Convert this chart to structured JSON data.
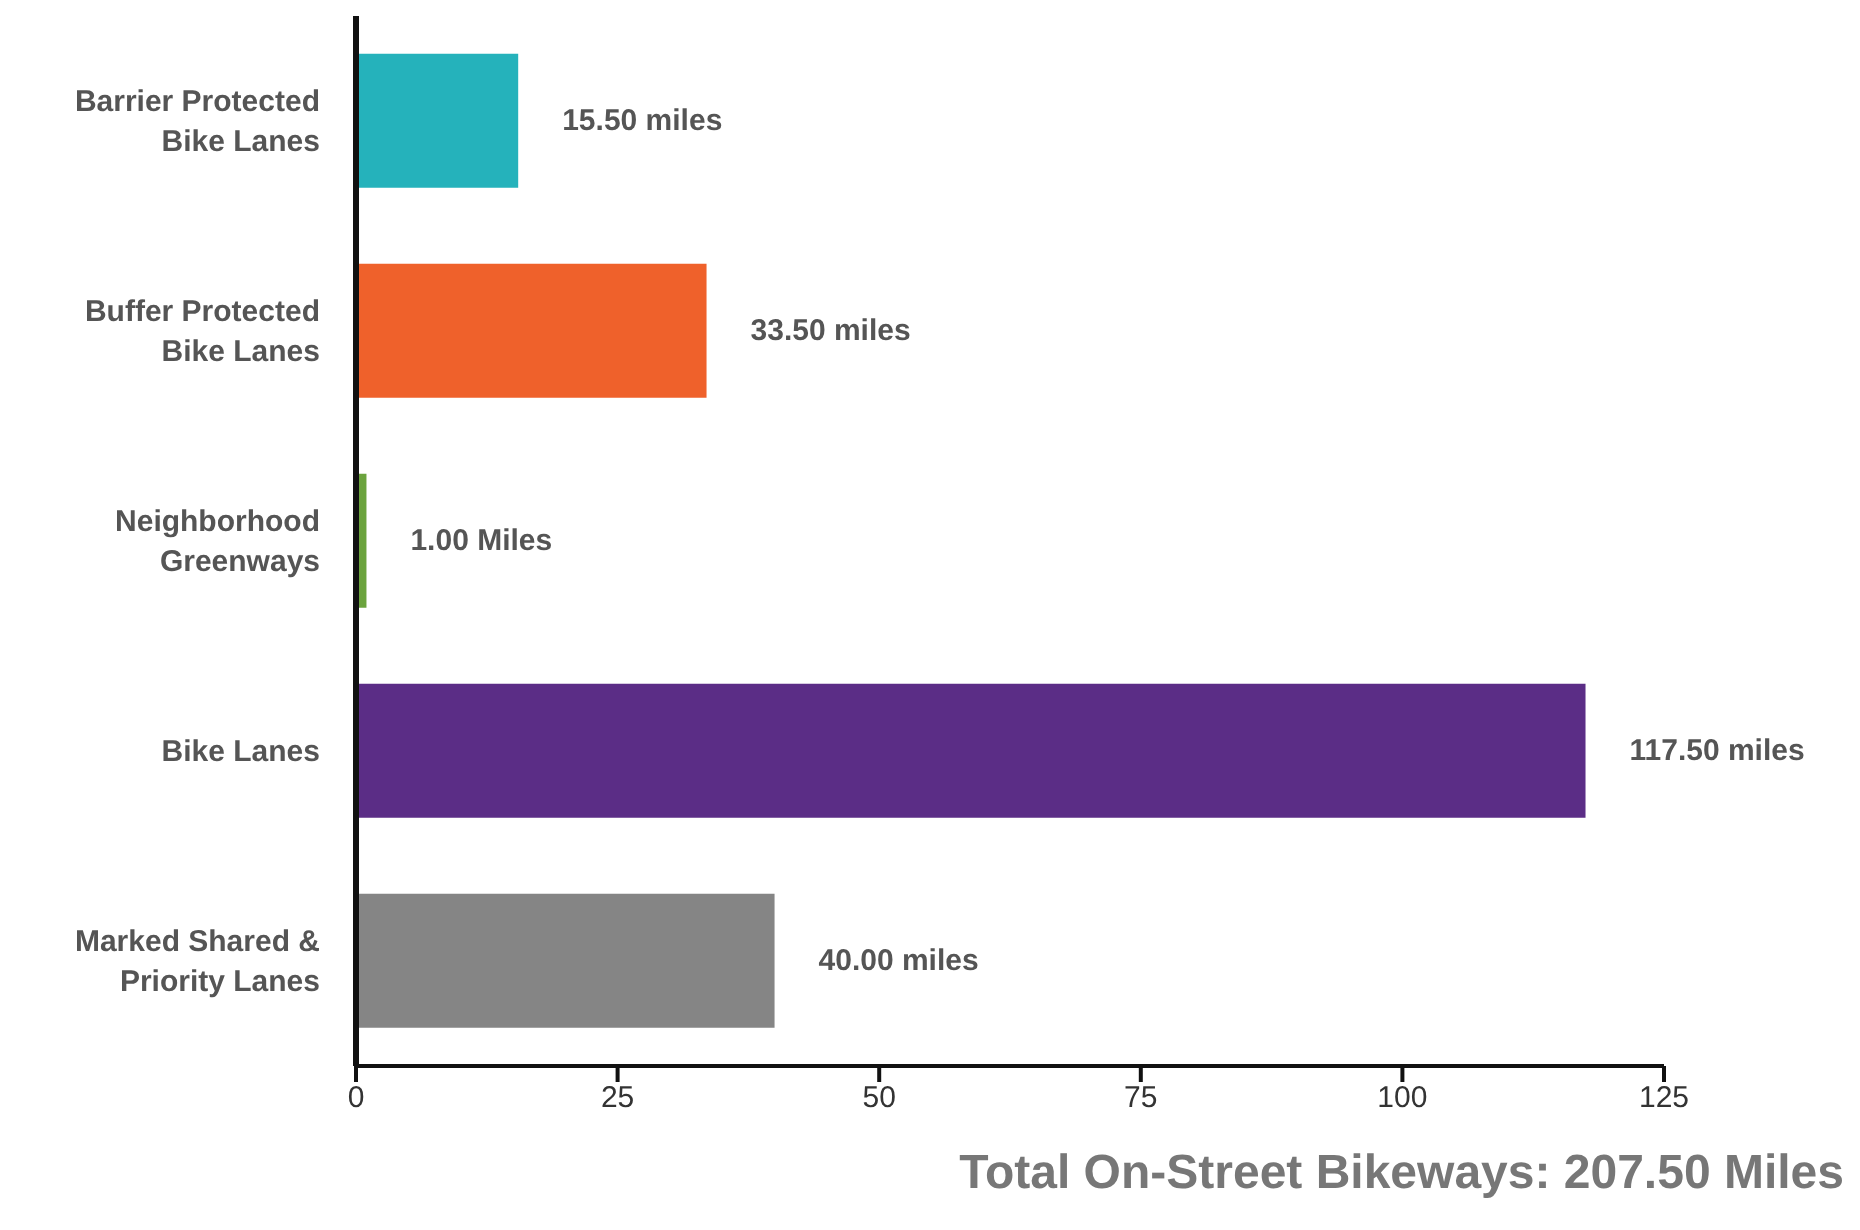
{
  "chart_data": {
    "type": "bar",
    "orientation": "horizontal",
    "categories": [
      "Barrier Protected Bike Lanes",
      "Buffer Protected Bike Lanes",
      "Neighborhood Greenways",
      "Bike Lanes",
      "Marked Shared & Priority Lanes"
    ],
    "values": [
      15.5,
      33.5,
      1,
      117.5,
      40
    ],
    "colors": [
      "#25b2bb",
      "#ef612b",
      "#6ba33d",
      "#5b2d86",
      "#858585"
    ],
    "value_labels": [
      "15.50 miles",
      "33.50 miles",
      "1.00 Miles",
      "117.50 miles",
      "40.00 miles"
    ],
    "xlim": [
      0,
      125
    ],
    "xticks": [
      0,
      25,
      50,
      75,
      100,
      125
    ],
    "annotations": [
      "Total On-Street Bikeways: 207.50 Miles"
    ]
  }
}
